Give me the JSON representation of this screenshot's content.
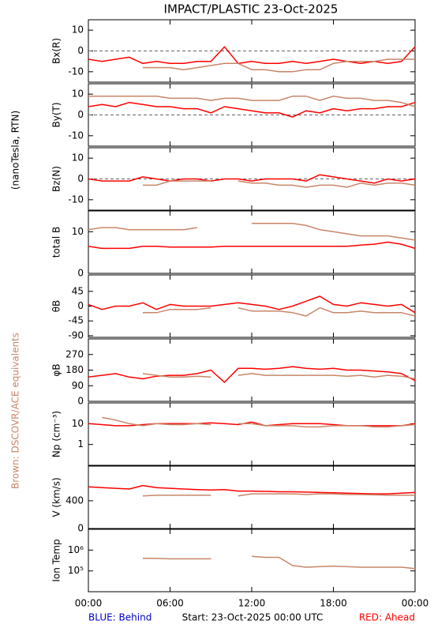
{
  "title": "IMPACT/PLASTIC   23-Oct-2025",
  "side_labels": {
    "units": "(nanoTesla, RTN)",
    "brown_note": "Brown: DSCOVR/ACE equivalents"
  },
  "footer": {
    "blue": "BLUE: Behind",
    "start": "Start: 23-Oct-2025 00:00 UTC",
    "red": "RED: Ahead"
  },
  "x_axis": {
    "xlim": [
      0,
      24
    ],
    "xticks": [
      {
        "value": 0,
        "label": "00:00"
      },
      {
        "value": 6,
        "label": "06:00"
      },
      {
        "value": 12,
        "label": "12:00"
      },
      {
        "value": 18,
        "label": "18:00"
      },
      {
        "value": 24,
        "label": "00:00"
      }
    ]
  },
  "chart_data": [
    {
      "type": "line",
      "ylabel": "Bx(R)",
      "ylim": [
        -15,
        15
      ],
      "yticks": [
        -10,
        0,
        10
      ],
      "zero_line": true,
      "x": [
        0,
        1,
        2,
        3,
        4,
        5,
        6,
        7,
        8,
        9,
        10,
        11,
        12,
        13,
        14,
        15,
        16,
        17,
        18,
        19,
        20,
        21,
        22,
        23,
        24
      ],
      "series": [
        {
          "name": "Ahead",
          "color": "#ff0000",
          "values": [
            -4,
            -5,
            -4,
            -3,
            -6,
            -5,
            -6,
            -6,
            -5,
            -5,
            2,
            -6,
            -5,
            -6,
            -6,
            -5,
            -6,
            -5,
            -4,
            -5,
            -6,
            -5,
            -6,
            -5,
            2
          ]
        },
        {
          "name": "DSCOVR/ACE",
          "color": "#c8866a",
          "values": [
            null,
            null,
            null,
            null,
            -8,
            -8,
            -8,
            -9,
            -8,
            -7,
            -6,
            -6,
            -9,
            -9,
            -10,
            -10,
            -9,
            -9,
            -6,
            -5,
            -5,
            -5,
            -4,
            -4,
            -4
          ]
        }
      ]
    },
    {
      "type": "line",
      "ylabel": "By(T)",
      "ylim": [
        -15,
        15
      ],
      "yticks": [
        -10,
        0,
        10
      ],
      "zero_line": true,
      "x": [
        0,
        1,
        2,
        3,
        4,
        5,
        6,
        7,
        8,
        9,
        10,
        11,
        12,
        13,
        14,
        15,
        16,
        17,
        18,
        19,
        20,
        21,
        22,
        23,
        24
      ],
      "series": [
        {
          "name": "Ahead",
          "color": "#ff0000",
          "values": [
            4,
            5,
            4,
            6,
            5,
            4,
            4,
            3,
            3,
            1,
            4,
            3,
            2,
            1,
            1,
            -1,
            2,
            1,
            3,
            2,
            3,
            3,
            4,
            4,
            6
          ]
        },
        {
          "name": "DSCOVR/ACE",
          "color": "#c8866a",
          "values": [
            9,
            9,
            9,
            9,
            9,
            9,
            8,
            8,
            8,
            7,
            8,
            8,
            7,
            7,
            7,
            9,
            9,
            7,
            9,
            8,
            8,
            7,
            7,
            6,
            4
          ]
        }
      ]
    },
    {
      "type": "line",
      "ylabel": "Bz(N)",
      "ylim": [
        -15,
        15
      ],
      "yticks": [
        -10,
        0,
        10
      ],
      "zero_line": true,
      "x": [
        0,
        1,
        2,
        3,
        4,
        5,
        6,
        7,
        8,
        9,
        10,
        11,
        12,
        13,
        14,
        15,
        16,
        17,
        18,
        19,
        20,
        21,
        22,
        23,
        24
      ],
      "series": [
        {
          "name": "Ahead",
          "color": "#ff0000",
          "values": [
            0,
            -1,
            -1,
            -1,
            1,
            0,
            -1,
            0,
            0,
            -1,
            0,
            0,
            -1,
            0,
            0,
            0,
            -1,
            2,
            1,
            0,
            -1,
            -2,
            0,
            -1,
            0
          ]
        },
        {
          "name": "DSCOVR/ACE",
          "color": "#c8866a",
          "values": [
            null,
            null,
            null,
            null,
            -3,
            -3,
            -1,
            -1,
            -1,
            -1,
            null,
            -1,
            -2,
            -2,
            -3,
            -3,
            -4,
            -3,
            -3,
            -4,
            -2,
            -3,
            -2,
            -2,
            -3
          ]
        }
      ]
    },
    {
      "type": "line",
      "ylabel": "total B",
      "ylim": [
        0,
        15
      ],
      "yticks": [
        0,
        10
      ],
      "x": [
        0,
        1,
        2,
        3,
        4,
        5,
        6,
        7,
        8,
        9,
        10,
        11,
        12,
        13,
        14,
        15,
        16,
        17,
        18,
        19,
        20,
        21,
        22,
        23,
        24
      ],
      "series": [
        {
          "name": "Ahead",
          "color": "#ff0000",
          "values": [
            6.5,
            6,
            6,
            6,
            6.5,
            6.5,
            6.3,
            6.3,
            6.3,
            6.3,
            6.5,
            6.5,
            6.5,
            6.5,
            6.5,
            6.5,
            6.5,
            6.5,
            6.5,
            6.5,
            6.8,
            7,
            7.5,
            7,
            6
          ]
        },
        {
          "name": "DSCOVR/ACE",
          "color": "#c8866a",
          "values": [
            10.5,
            11,
            11,
            10.5,
            10.5,
            10.5,
            10.5,
            10.5,
            11,
            null,
            null,
            null,
            12,
            12,
            12,
            12,
            11.5,
            10.5,
            10,
            9.5,
            9,
            9,
            9,
            8.5,
            8
          ]
        }
      ]
    },
    {
      "type": "line",
      "ylabel": "θB",
      "ylim": [
        -95,
        95
      ],
      "yticks": [
        -90,
        -45,
        0,
        45
      ],
      "x": [
        0,
        1,
        2,
        3,
        4,
        5,
        6,
        7,
        8,
        9,
        10,
        11,
        12,
        13,
        14,
        15,
        16,
        17,
        18,
        19,
        20,
        21,
        22,
        23,
        24
      ],
      "series": [
        {
          "name": "Ahead",
          "color": "#ff0000",
          "values": [
            5,
            -10,
            0,
            0,
            10,
            -10,
            5,
            0,
            0,
            0,
            5,
            10,
            5,
            0,
            -10,
            0,
            15,
            30,
            5,
            0,
            10,
            5,
            0,
            5,
            -20
          ]
        },
        {
          "name": "DSCOVR/ACE",
          "color": "#c8866a",
          "values": [
            null,
            null,
            null,
            null,
            -20,
            -20,
            -10,
            -10,
            -10,
            -5,
            null,
            -5,
            -15,
            -15,
            -15,
            -20,
            -30,
            -5,
            -20,
            -20,
            -15,
            -20,
            -20,
            -20,
            -30
          ]
        }
      ]
    },
    {
      "type": "line",
      "ylabel": "φB",
      "ylim": [
        0,
        360
      ],
      "yticks": [
        0,
        90,
        180,
        270
      ],
      "x": [
        0,
        1,
        2,
        3,
        4,
        5,
        6,
        7,
        8,
        9,
        10,
        11,
        12,
        13,
        14,
        15,
        16,
        17,
        18,
        19,
        20,
        21,
        22,
        23,
        24
      ],
      "series": [
        {
          "name": "Ahead",
          "color": "#ff0000",
          "values": [
            140,
            150,
            160,
            140,
            130,
            145,
            150,
            150,
            160,
            180,
            110,
            190,
            190,
            185,
            190,
            200,
            190,
            185,
            190,
            180,
            180,
            175,
            170,
            160,
            120
          ]
        },
        {
          "name": "DSCOVR/ACE",
          "color": "#c8866a",
          "values": [
            null,
            null,
            null,
            null,
            160,
            150,
            140,
            140,
            145,
            140,
            null,
            150,
            160,
            150,
            150,
            150,
            150,
            150,
            150,
            145,
            150,
            140,
            150,
            145,
            130
          ]
        }
      ]
    },
    {
      "type": "line",
      "ylabel": "Np (cm⁻³)",
      "log": true,
      "ylim": [
        0.1,
        100
      ],
      "yticks": [
        1,
        10
      ],
      "x": [
        0,
        1,
        2,
        3,
        4,
        5,
        6,
        7,
        8,
        9,
        10,
        11,
        12,
        13,
        14,
        15,
        16,
        17,
        18,
        19,
        20,
        21,
        22,
        23,
        24
      ],
      "series": [
        {
          "name": "Ahead",
          "color": "#ff0000",
          "values": [
            10,
            9,
            8,
            8,
            9,
            10,
            10,
            10,
            10,
            11,
            10,
            9,
            12,
            8,
            9,
            10,
            10,
            10,
            9,
            8,
            8,
            8,
            8,
            8,
            10
          ]
        },
        {
          "name": "DSCOVR/ACE",
          "color": "#c8866a",
          "values": [
            null,
            20,
            15,
            10,
            8,
            10,
            9,
            9,
            10,
            9,
            null,
            10,
            10,
            8,
            8,
            8,
            7,
            7,
            8,
            8,
            8,
            7,
            7,
            8,
            9
          ]
        }
      ]
    },
    {
      "type": "line",
      "ylabel": "V (km/s)",
      "ylim": [
        0,
        900
      ],
      "yticks": [
        0,
        400
      ],
      "x": [
        0,
        1,
        2,
        3,
        4,
        5,
        6,
        7,
        8,
        9,
        10,
        11,
        12,
        13,
        14,
        15,
        16,
        17,
        18,
        19,
        20,
        21,
        22,
        23,
        24
      ],
      "series": [
        {
          "name": "Ahead",
          "color": "#ff0000",
          "values": [
            600,
            590,
            580,
            570,
            620,
            590,
            580,
            570,
            560,
            555,
            560,
            540,
            540,
            535,
            530,
            530,
            525,
            520,
            515,
            510,
            505,
            500,
            500,
            510,
            520
          ]
        },
        {
          "name": "DSCOVR/ACE",
          "color": "#c8866a",
          "values": [
            null,
            null,
            null,
            null,
            470,
            480,
            480,
            480,
            480,
            480,
            null,
            470,
            500,
            500,
            500,
            500,
            490,
            500,
            500,
            490,
            490,
            485,
            480,
            480,
            480
          ]
        }
      ]
    },
    {
      "type": "line",
      "ylabel": "Ion Temp",
      "log": true,
      "ylim": [
        10000,
        10000000
      ],
      "yticks": [
        {
          "value": 100000,
          "label": "10⁵"
        },
        {
          "value": 1000000,
          "label": "10⁶"
        }
      ],
      "x": [
        0,
        1,
        2,
        3,
        4,
        5,
        6,
        7,
        8,
        9,
        10,
        11,
        12,
        13,
        14,
        15,
        16,
        17,
        18,
        19,
        20,
        21,
        22,
        23,
        24
      ],
      "series": [
        {
          "name": "DSCOVR/ACE",
          "color": "#c8866a",
          "values": [
            null,
            null,
            null,
            null,
            400000,
            400000,
            380000,
            380000,
            380000,
            380000,
            null,
            null,
            500000,
            450000,
            450000,
            180000,
            150000,
            160000,
            170000,
            160000,
            150000,
            150000,
            150000,
            150000,
            130000
          ]
        }
      ]
    }
  ]
}
